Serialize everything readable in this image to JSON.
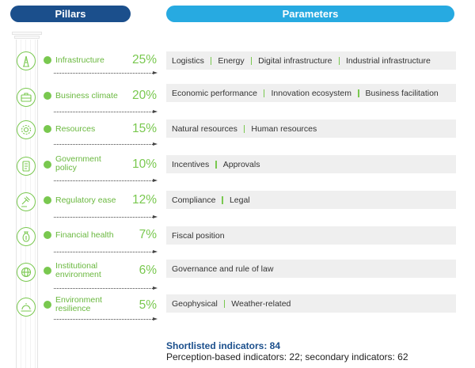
{
  "headers": {
    "pillars": "Pillars",
    "parameters": "Parameters"
  },
  "pillars": [
    {
      "name": "Infrastructure",
      "weight": "25%",
      "icon": "tower-icon",
      "parameters": [
        "Logistics",
        "Energy",
        "Digital infrastructure",
        "Industrial infrastructure"
      ]
    },
    {
      "name": "Business climate",
      "weight": "20%",
      "icon": "briefcase-icon",
      "parameters": [
        "Economic performance",
        "Innovation ecosystem",
        "Business facilitation"
      ]
    },
    {
      "name": "Resources",
      "weight": "15%",
      "icon": "gear-icon",
      "parameters": [
        "Natural resources",
        "Human resources"
      ]
    },
    {
      "name": "Government policy",
      "weight": "10%",
      "icon": "document-icon",
      "parameters": [
        "Incentives",
        "Approvals"
      ]
    },
    {
      "name": "Regulatory ease",
      "weight": "12%",
      "icon": "gavel-icon",
      "parameters": [
        "Compliance",
        "Legal"
      ]
    },
    {
      "name": "Financial health",
      "weight": "7%",
      "icon": "money-bag-icon",
      "parameters": [
        "Fiscal position"
      ]
    },
    {
      "name": "Institutional environment",
      "weight": "6%",
      "icon": "globe-icon",
      "parameters": [
        "Governance and rule of law"
      ]
    },
    {
      "name": "Environment resilience",
      "weight": "5%",
      "icon": "weather-icon",
      "parameters": [
        "Geophysical",
        "Weather-related"
      ]
    }
  ],
  "footer": {
    "shortlisted": "Shortlisted indicators: 84",
    "breakdown": "Perception-based indicators: 22;  secondary indicators: 62"
  },
  "colors": {
    "pillars_header": "#1b4f8c",
    "parameters_header": "#27aae1",
    "accent_green": "#79c84f",
    "parameter_bar": "#efefef"
  }
}
